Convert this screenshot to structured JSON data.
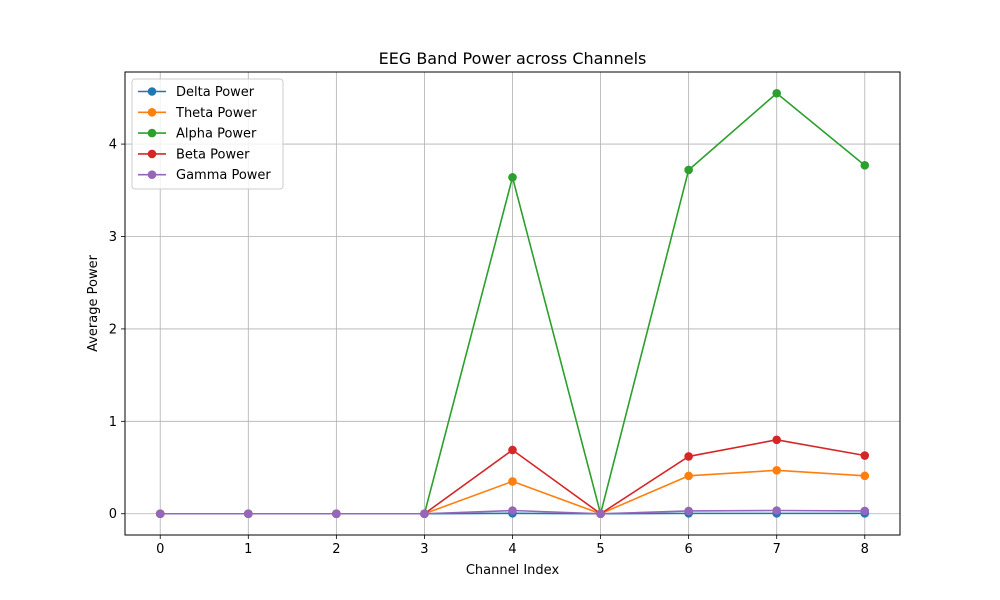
{
  "chart_data": {
    "type": "line",
    "title": "EEG Band Power across Channels",
    "xlabel": "Channel Index",
    "ylabel": "Average Power",
    "x": [
      0,
      1,
      2,
      3,
      4,
      5,
      6,
      7,
      8
    ],
    "xticks": [
      "0",
      "1",
      "2",
      "3",
      "4",
      "5",
      "6",
      "7",
      "8"
    ],
    "yticks": [
      "0",
      "1",
      "2",
      "3",
      "4"
    ],
    "xlim": [
      -0.4,
      8.4
    ],
    "ylim": [
      -0.23,
      4.78
    ],
    "grid": true,
    "legend_position": "top-left",
    "series": [
      {
        "name": "Delta Power",
        "color": "#1f77b4",
        "values": [
          0,
          0,
          0,
          0,
          0.005,
          0,
          0.004,
          0.004,
          0.004
        ]
      },
      {
        "name": "Theta Power",
        "color": "#ff7f0e",
        "values": [
          0,
          0,
          0,
          0,
          0.35,
          0,
          0.41,
          0.47,
          0.41
        ]
      },
      {
        "name": "Alpha Power",
        "color": "#2ca02c",
        "values": [
          0,
          0,
          0,
          0,
          3.64,
          0,
          3.72,
          4.55,
          3.77
        ]
      },
      {
        "name": "Beta Power",
        "color": "#d62728",
        "values": [
          0,
          0,
          0,
          0,
          0.69,
          0,
          0.62,
          0.8,
          0.63
        ]
      },
      {
        "name": "Gamma Power",
        "color": "#9467bd",
        "values": [
          0,
          0,
          0,
          0,
          0.035,
          0,
          0.03,
          0.035,
          0.03
        ]
      }
    ]
  }
}
